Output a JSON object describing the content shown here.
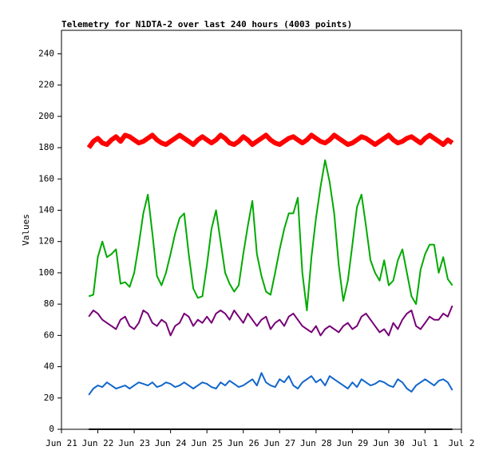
{
  "chart_data": {
    "type": "line",
    "title": "Telemetry for N1DTA-2 over last 240 hours (4003 points)",
    "y_label": "Values",
    "x": [
      0.75,
      0.875,
      1,
      1.125,
      1.25,
      1.375,
      1.5,
      1.625,
      1.75,
      1.875,
      2,
      2.125,
      2.25,
      2.375,
      2.5,
      2.625,
      2.75,
      2.875,
      3,
      3.125,
      3.25,
      3.375,
      3.5,
      3.625,
      3.75,
      3.875,
      4,
      4.125,
      4.25,
      4.375,
      4.5,
      4.625,
      4.75,
      4.875,
      5,
      5.125,
      5.25,
      5.375,
      5.5,
      5.625,
      5.75,
      5.875,
      6,
      6.125,
      6.25,
      6.375,
      6.5,
      6.625,
      6.75,
      6.875,
      7,
      7.125,
      7.25,
      7.375,
      7.5,
      7.625,
      7.75,
      7.875,
      8,
      8.125,
      8.25,
      8.375,
      8.5,
      8.625,
      8.75,
      8.875,
      9,
      9.125,
      9.25,
      9.375,
      9.5,
      9.625,
      9.75,
      9.875,
      10,
      10.125,
      10.25,
      10.375,
      10.5,
      10.625,
      10.75
    ],
    "series": [
      {
        "color": "#ff0000",
        "values": [
          180,
          184,
          186,
          183,
          182,
          185,
          187,
          184,
          188,
          187,
          185,
          183,
          184,
          186,
          188,
          185,
          183,
          182,
          184,
          186,
          188,
          186,
          184,
          182,
          185,
          187,
          185,
          183,
          185,
          188,
          186,
          183,
          182,
          184,
          187,
          185,
          182,
          184,
          186,
          188,
          185,
          183,
          182,
          184,
          186,
          187,
          185,
          183,
          185,
          188,
          186,
          184,
          183,
          185,
          188,
          186,
          184,
          182,
          183,
          185,
          187,
          186,
          184,
          182,
          184,
          186,
          188,
          185,
          183,
          184,
          186,
          187,
          185,
          183,
          186,
          188,
          186,
          184,
          182,
          185,
          183
        ]
      },
      {
        "color": "#00aa00",
        "values": [
          85,
          86,
          110,
          120,
          110,
          112,
          115,
          93,
          94,
          91,
          100,
          118,
          138,
          150,
          125,
          98,
          92,
          100,
          112,
          125,
          135,
          138,
          112,
          90,
          84,
          85,
          105,
          128,
          140,
          120,
          100,
          93,
          88,
          92,
          112,
          130,
          146,
          112,
          98,
          88,
          86,
          100,
          115,
          128,
          138,
          138,
          148,
          100,
          76,
          110,
          135,
          155,
          172,
          158,
          138,
          105,
          82,
          95,
          118,
          142,
          150,
          130,
          108,
          100,
          95,
          108,
          92,
          95,
          108,
          115,
          100,
          85,
          80,
          102,
          112,
          118,
          118,
          100,
          110,
          96,
          92
        ]
      },
      {
        "color": "#770077",
        "values": [
          72,
          76,
          74,
          70,
          68,
          66,
          64,
          70,
          72,
          66,
          64,
          68,
          76,
          74,
          68,
          66,
          70,
          68,
          60,
          66,
          68,
          74,
          72,
          66,
          70,
          68,
          72,
          68,
          74,
          76,
          74,
          70,
          76,
          72,
          68,
          74,
          70,
          66,
          70,
          72,
          64,
          68,
          70,
          66,
          72,
          74,
          70,
          66,
          64,
          62,
          66,
          60,
          64,
          66,
          64,
          62,
          66,
          68,
          64,
          66,
          72,
          74,
          70,
          66,
          62,
          64,
          60,
          68,
          64,
          70,
          74,
          76,
          66,
          64,
          68,
          72,
          70,
          70,
          74,
          72,
          79
        ]
      },
      {
        "color": "#1166cc",
        "values": [
          22,
          26,
          28,
          27,
          30,
          28,
          26,
          27,
          28,
          26,
          28,
          30,
          29,
          28,
          30,
          27,
          28,
          30,
          29,
          27,
          28,
          30,
          28,
          26,
          28,
          30,
          29,
          27,
          26,
          30,
          28,
          31,
          29,
          27,
          28,
          30,
          32,
          28,
          36,
          30,
          28,
          27,
          32,
          30,
          34,
          28,
          26,
          30,
          32,
          34,
          30,
          32,
          28,
          34,
          32,
          30,
          28,
          26,
          30,
          27,
          32,
          30,
          28,
          29,
          31,
          30,
          28,
          27,
          32,
          30,
          26,
          24,
          28,
          30,
          32,
          30,
          28,
          31,
          32,
          30,
          25
        ]
      },
      {
        "color": "#000000",
        "values": [
          0,
          0,
          0,
          0,
          0,
          0,
          0,
          0,
          0,
          0,
          0,
          0,
          0,
          0,
          0,
          0,
          0,
          0,
          0,
          0,
          0,
          0,
          0,
          0,
          0,
          0,
          0,
          0,
          0,
          0,
          0,
          0,
          0,
          0,
          0,
          0,
          0,
          0,
          0,
          0,
          0,
          0,
          0,
          0,
          0,
          0,
          0,
          0,
          0,
          0,
          0,
          0,
          0,
          0,
          0,
          0,
          0,
          0,
          0,
          0,
          0,
          0,
          0,
          0,
          0,
          0,
          0,
          0,
          0,
          0,
          0,
          0,
          0,
          0,
          0,
          0,
          0,
          0,
          0,
          0,
          0
        ]
      }
    ],
    "xlim": [
      0,
      11
    ],
    "xticks": [
      {
        "value": 0,
        "label": "Jun 21"
      },
      {
        "value": 1,
        "label": "Jun 22"
      },
      {
        "value": 2,
        "label": "Jun 23"
      },
      {
        "value": 3,
        "label": "Jun 24"
      },
      {
        "value": 4,
        "label": "Jun 25"
      },
      {
        "value": 5,
        "label": "Jun 26"
      },
      {
        "value": 6,
        "label": "Jun 27"
      },
      {
        "value": 7,
        "label": "Jun 28"
      },
      {
        "value": 8,
        "label": "Jun 29"
      },
      {
        "value": 9,
        "label": "Jun 30"
      },
      {
        "value": 10,
        "label": "Jul 1"
      },
      {
        "value": 11,
        "label": "Jul 2"
      }
    ],
    "ylim": [
      0,
      255
    ],
    "yticks": [
      0,
      20,
      40,
      60,
      80,
      100,
      120,
      140,
      160,
      180,
      200,
      220,
      240
    ]
  }
}
